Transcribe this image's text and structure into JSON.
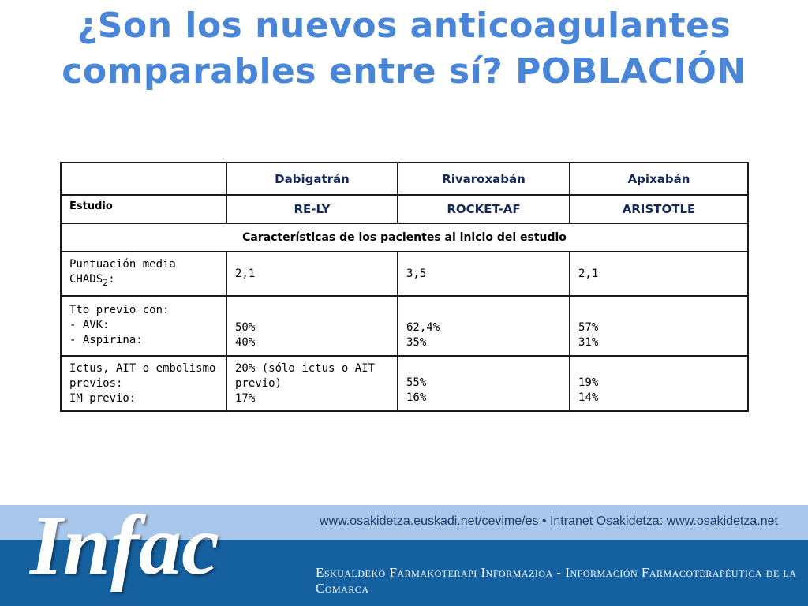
{
  "title": {
    "line1": "¿Son los nuevos anticoagulantes",
    "line2": "comparables entre sí? POBLACIÓN"
  },
  "table": {
    "drugs": [
      "Dabigatrán",
      "Rivaroxabán",
      "Apixabán"
    ],
    "study_label": "Estudio",
    "studies": [
      "RE-LY",
      "ROCKET-AF",
      "ARISTOTLE"
    ],
    "section_title": "Características de los pacientes al inicio del estudio",
    "rows": [
      {
        "label_line1": "Puntuación media",
        "label_line2": "CHADS",
        "label_sub": "2",
        "label_suffix": ":",
        "values": [
          "2,1",
          "3,5",
          "2,1"
        ]
      },
      {
        "label_lines": [
          "Tto previo con:",
          "- AVK:",
          "- Aspirina:"
        ],
        "values": [
          [
            "50%",
            "40%"
          ],
          [
            "62,4%",
            "35%"
          ],
          [
            "57%",
            "31%"
          ]
        ]
      },
      {
        "label_lines": [
          "Ictus, AIT o embolismo",
          "previos:",
          "IM previo:"
        ],
        "values": [
          [
            "20% (sólo ictus o AIT",
            "previo)",
            "17%"
          ],
          [
            "55%",
            "16%"
          ],
          [
            "19%",
            "14%"
          ]
        ]
      }
    ]
  },
  "footer": {
    "links": "www.osakidetza.euskadi.net/cevime/es  •  Intranet Osakidetza: www.osakidetza.net",
    "subtitle": "Eskualdeko Farmakoterapi Informazioa  -  Información Farmacoterapéutica de la Comarca",
    "logo": "Infac"
  }
}
